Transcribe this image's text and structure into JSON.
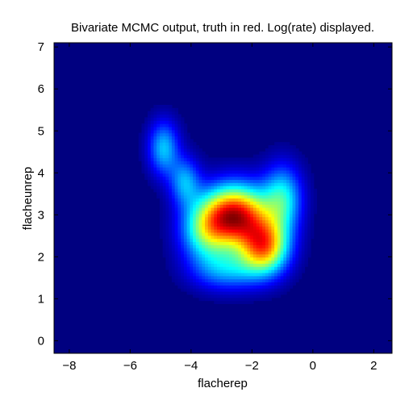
{
  "chart_data": {
    "type": "heatmap",
    "title": "Bivariate MCMC output, truth in red. Log(rate) displayed.",
    "xlabel": "flacherep",
    "ylabel": "flacheunrep",
    "xlim": [
      -8.5,
      2.6
    ],
    "ylim": [
      -0.3,
      7.1
    ],
    "xticks": [
      -8,
      -6,
      -4,
      -2,
      0,
      2
    ],
    "yticks": [
      0,
      1,
      2,
      3,
      4,
      5,
      6,
      7
    ],
    "xtick_labels": [
      "−8",
      "−6",
      "−4",
      "−2",
      "0",
      "2"
    ],
    "ytick_labels": [
      "0",
      "1",
      "2",
      "3",
      "4",
      "5",
      "6",
      "7"
    ],
    "colormap": "jet",
    "grid": false,
    "density_components": [
      {
        "x": -2.55,
        "y": 3.0,
        "sx": 0.75,
        "sy": 0.5,
        "weight": 1.0
      },
      {
        "x": -1.6,
        "y": 2.25,
        "sx": 0.55,
        "sy": 0.45,
        "weight": 0.78
      },
      {
        "x": -3.5,
        "y": 2.6,
        "sx": 0.6,
        "sy": 0.5,
        "weight": 0.42
      },
      {
        "x": -1.0,
        "y": 3.4,
        "sx": 0.45,
        "sy": 0.55,
        "weight": 0.42
      },
      {
        "x": -4.9,
        "y": 4.6,
        "sx": 0.35,
        "sy": 0.45,
        "weight": 0.36
      },
      {
        "x": -4.2,
        "y": 3.8,
        "sx": 0.35,
        "sy": 0.4,
        "weight": 0.32
      },
      {
        "x": -2.8,
        "y": 1.7,
        "sx": 0.8,
        "sy": 0.35,
        "weight": 0.3
      }
    ]
  }
}
